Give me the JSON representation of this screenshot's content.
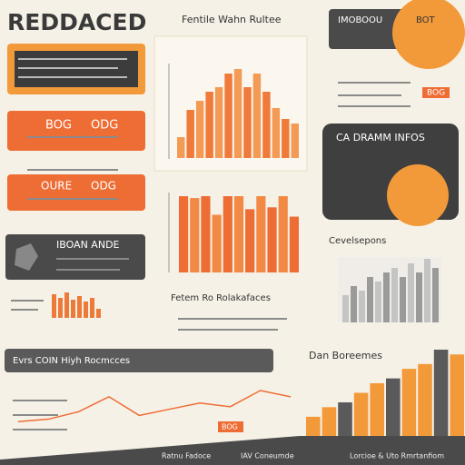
{
  "header": {
    "title": "REDDACED"
  },
  "panels": [
    {
      "left": "BOG",
      "right": "ODG"
    },
    {
      "left": "OURE",
      "right": "ODG"
    },
    {
      "title": "IBOAN ANDE"
    },
    {
      "title": "IMOBOOU",
      "badge": "BOT"
    },
    {
      "title": "CA DRAMM INFOS"
    },
    {
      "title": "Evrs COIN Hiyh Rocmcces"
    }
  ],
  "labels": {
    "top_right_tag": "BOG",
    "right_heading": "Cevelsepons",
    "center_heading": "Fetem Ro Rolakafaces",
    "bottom_right_heading": "Dan Boreemes",
    "footer_left": "Ratnu Fadoce",
    "footer_mid": "IAV Coneumde",
    "footer_right": "Lorcioe & Uto Rmrtanfiom",
    "line_tag": "BOG"
  },
  "charts": [
    {
      "title": "Fentile Wahn Rultee",
      "values": [
        23,
        53,
        63,
        73,
        78,
        93,
        98,
        78,
        93,
        73,
        55,
        43,
        38
      ]
    },
    {
      "values": [
        82,
        80,
        82,
        62,
        82,
        82,
        68,
        82,
        70,
        82,
        60
      ]
    },
    {
      "values": [
        26,
        22,
        28,
        20,
        24,
        18,
        22,
        10
      ]
    },
    {
      "values": [
        30,
        40,
        35,
        50,
        45,
        55,
        60,
        50,
        65,
        55,
        70,
        60
      ]
    },
    {
      "values": [
        10,
        12,
        18,
        30,
        15,
        20,
        25,
        22,
        35,
        30
      ]
    },
    {
      "values": [
        20,
        30,
        35,
        45,
        55,
        60,
        70,
        75,
        90,
        85
      ]
    }
  ]
}
